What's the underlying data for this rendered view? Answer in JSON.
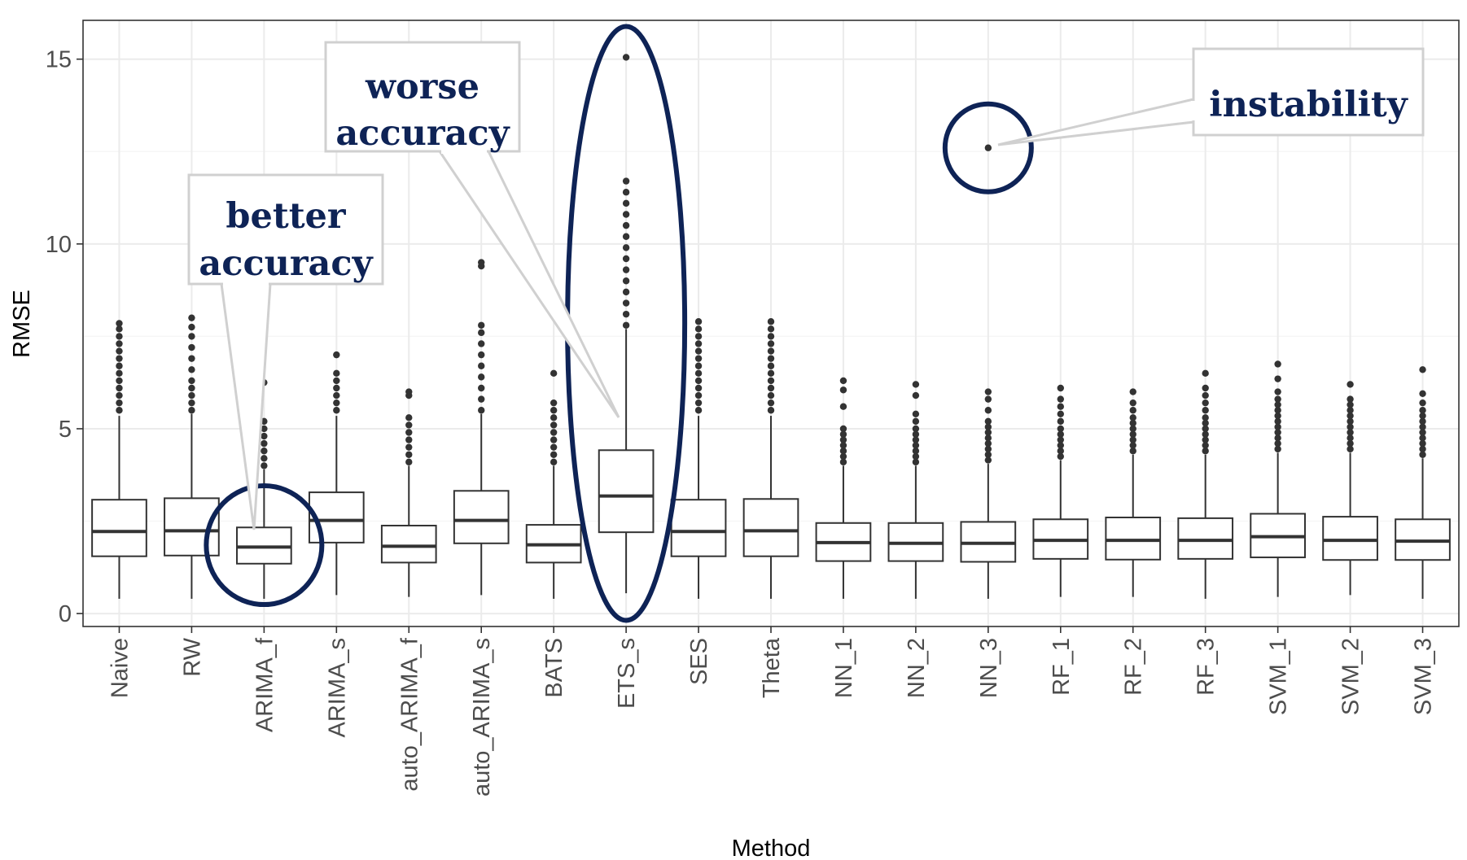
{
  "chart_data": {
    "type": "boxplot",
    "xlabel": "Method",
    "ylabel": "RMSE",
    "ylim": [
      -0.35,
      16.05
    ],
    "yticks": [
      0,
      5,
      10,
      15
    ],
    "grid": true,
    "categories": [
      "Naive",
      "RW",
      "ARIMA_f",
      "ARIMA_s",
      "auto_ARIMA_f",
      "auto_ARIMA_s",
      "BATS",
      "ETS_s",
      "SES",
      "Theta",
      "NN_1",
      "NN_2",
      "NN_3",
      "RF_1",
      "RF_2",
      "RF_3",
      "SVM_1",
      "SVM_2",
      "SVM_3"
    ],
    "boxes": [
      {
        "min": 0.4,
        "q1": 1.55,
        "median": 2.22,
        "q3": 3.08,
        "max": 5.35,
        "outliers": [
          5.5,
          5.7,
          5.9,
          6.1,
          6.3,
          6.5,
          6.7,
          6.9,
          7.1,
          7.3,
          7.5,
          7.7,
          7.85
        ]
      },
      {
        "min": 0.4,
        "q1": 1.57,
        "median": 2.24,
        "q3": 3.12,
        "max": 5.4,
        "outliers": [
          5.5,
          5.7,
          5.9,
          6.1,
          6.3,
          6.6,
          6.9,
          7.2,
          7.5,
          7.75,
          8.0
        ]
      },
      {
        "min": 0.4,
        "q1": 1.35,
        "median": 1.8,
        "q3": 2.33,
        "max": 3.9,
        "outliers": [
          4.0,
          4.2,
          4.4,
          4.6,
          4.8,
          5.0,
          5.2,
          6.25
        ]
      },
      {
        "min": 0.5,
        "q1": 1.92,
        "median": 2.52,
        "q3": 3.28,
        "max": 5.35,
        "outliers": [
          5.5,
          5.7,
          5.9,
          6.1,
          6.3,
          6.5,
          7.0
        ]
      },
      {
        "min": 0.45,
        "q1": 1.38,
        "median": 1.82,
        "q3": 2.38,
        "max": 4.0,
        "outliers": [
          4.1,
          4.3,
          4.5,
          4.7,
          4.9,
          5.1,
          5.3,
          5.9,
          6.0
        ]
      },
      {
        "min": 0.5,
        "q1": 1.9,
        "median": 2.52,
        "q3": 3.32,
        "max": 5.4,
        "outliers": [
          5.5,
          5.8,
          6.1,
          6.4,
          6.7,
          7.0,
          7.3,
          7.6,
          7.8,
          9.4,
          9.5
        ]
      },
      {
        "min": 0.4,
        "q1": 1.38,
        "median": 1.86,
        "q3": 2.4,
        "max": 4.0,
        "outliers": [
          4.1,
          4.3,
          4.5,
          4.7,
          4.9,
          5.1,
          5.3,
          5.5,
          5.7,
          6.5
        ]
      },
      {
        "min": 0.55,
        "q1": 2.2,
        "median": 3.18,
        "q3": 4.42,
        "max": 7.7,
        "outliers": [
          7.8,
          8.1,
          8.4,
          8.7,
          9.0,
          9.3,
          9.6,
          9.9,
          10.2,
          10.5,
          10.8,
          11.1,
          11.4,
          11.7,
          15.05
        ]
      },
      {
        "min": 0.4,
        "q1": 1.55,
        "median": 2.22,
        "q3": 3.08,
        "max": 5.35,
        "outliers": [
          5.5,
          5.7,
          5.9,
          6.1,
          6.3,
          6.5,
          6.7,
          6.9,
          7.1,
          7.3,
          7.5,
          7.7,
          7.9
        ]
      },
      {
        "min": 0.4,
        "q1": 1.55,
        "median": 2.24,
        "q3": 3.1,
        "max": 5.35,
        "outliers": [
          5.5,
          5.7,
          5.9,
          6.1,
          6.3,
          6.5,
          6.7,
          6.9,
          7.1,
          7.3,
          7.5,
          7.7,
          7.9
        ]
      },
      {
        "min": 0.4,
        "q1": 1.42,
        "median": 1.92,
        "q3": 2.45,
        "max": 4.0,
        "outliers": [
          4.1,
          4.25,
          4.4,
          4.55,
          4.7,
          4.85,
          5.0,
          5.6,
          6.05,
          6.3
        ]
      },
      {
        "min": 0.4,
        "q1": 1.42,
        "median": 1.9,
        "q3": 2.45,
        "max": 4.0,
        "outliers": [
          4.1,
          4.25,
          4.4,
          4.55,
          4.7,
          4.85,
          5.0,
          5.2,
          5.4,
          5.9,
          6.2
        ]
      },
      {
        "min": 0.4,
        "q1": 1.4,
        "median": 1.9,
        "q3": 2.48,
        "max": 4.05,
        "outliers": [
          4.15,
          4.3,
          4.45,
          4.6,
          4.75,
          4.9,
          5.05,
          5.2,
          5.5,
          5.8,
          6.0,
          12.6
        ]
      },
      {
        "min": 0.45,
        "q1": 1.48,
        "median": 1.98,
        "q3": 2.55,
        "max": 4.15,
        "outliers": [
          4.25,
          4.4,
          4.55,
          4.7,
          4.85,
          5.0,
          5.2,
          5.4,
          5.6,
          5.8,
          6.1
        ]
      },
      {
        "min": 0.45,
        "q1": 1.46,
        "median": 1.98,
        "q3": 2.6,
        "max": 4.3,
        "outliers": [
          4.4,
          4.55,
          4.7,
          4.85,
          5.0,
          5.15,
          5.3,
          5.5,
          5.7,
          6.0
        ]
      },
      {
        "min": 0.4,
        "q1": 1.48,
        "median": 1.98,
        "q3": 2.58,
        "max": 4.3,
        "outliers": [
          4.4,
          4.55,
          4.7,
          4.85,
          5.0,
          5.15,
          5.3,
          5.5,
          5.7,
          5.9,
          6.1,
          6.5
        ]
      },
      {
        "min": 0.45,
        "q1": 1.52,
        "median": 2.08,
        "q3": 2.7,
        "max": 4.35,
        "outliers": [
          4.45,
          4.6,
          4.75,
          4.9,
          5.05,
          5.2,
          5.35,
          5.5,
          5.65,
          5.8,
          6.0,
          6.35,
          6.75
        ]
      },
      {
        "min": 0.5,
        "q1": 1.45,
        "median": 1.98,
        "q3": 2.62,
        "max": 4.35,
        "outliers": [
          4.45,
          4.6,
          4.75,
          4.9,
          5.05,
          5.2,
          5.35,
          5.5,
          5.65,
          5.8,
          6.2
        ]
      },
      {
        "min": 0.4,
        "q1": 1.45,
        "median": 1.96,
        "q3": 2.55,
        "max": 4.2,
        "outliers": [
          4.3,
          4.45,
          4.6,
          4.75,
          4.9,
          5.05,
          5.2,
          5.35,
          5.5,
          5.7,
          5.95,
          6.6
        ]
      }
    ],
    "annotations": [
      {
        "lines": [
          "better",
          "accuracy"
        ]
      },
      {
        "lines": [
          "worse",
          "accuracy"
        ]
      },
      {
        "lines": [
          "instability"
        ]
      }
    ]
  },
  "colors": {
    "panel_border": "#333333",
    "grid_major": "#ebebeb",
    "grid_minor": "#f5f5f5",
    "box": "#333333",
    "highlight": "#0e2356",
    "callout_border": "#d0d0d0",
    "callout_text": "#0e2356"
  }
}
